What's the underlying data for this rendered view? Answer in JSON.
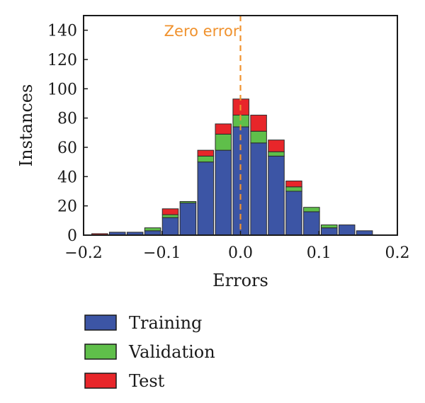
{
  "chart_data": {
    "type": "bar",
    "stacked": true,
    "xlabel": "Errors",
    "ylabel": "Instances",
    "xlim": [
      -0.2,
      0.2
    ],
    "ylim": [
      0,
      150
    ],
    "xticks": [
      -0.2,
      -0.1,
      0.0,
      0.1,
      0.2
    ],
    "xtick_labels": [
      "−0.2",
      "−0.1",
      "0.0",
      "0.1",
      "0.2"
    ],
    "yticks": [
      0,
      20,
      40,
      60,
      80,
      100,
      120,
      140
    ],
    "ytick_labels": [
      "0",
      "20",
      "40",
      "60",
      "80",
      "100",
      "120",
      "140"
    ],
    "bin_width": 0.0225,
    "x": [
      -0.1794,
      -0.1569,
      -0.1344,
      -0.1119,
      -0.0894,
      -0.0669,
      -0.0444,
      -0.0219,
      0.0006,
      0.0231,
      0.0456,
      0.0681,
      0.0906,
      0.1131,
      0.1356,
      0.1581
    ],
    "series": [
      {
        "name": "Training",
        "color": "#3c55a5",
        "values": [
          0,
          2,
          2,
          3,
          12,
          22,
          50,
          58,
          74,
          63,
          54,
          30,
          16,
          5,
          7,
          3
        ]
      },
      {
        "name": "Validation",
        "color": "#5fbf4a",
        "values": [
          0,
          0,
          0,
          2,
          2,
          1,
          4,
          11,
          8,
          8,
          3,
          3,
          3,
          2,
          0,
          0
        ]
      },
      {
        "name": "Test",
        "color": "#e8262a",
        "values": [
          1,
          0,
          0,
          0,
          4,
          0,
          4,
          7,
          11,
          11,
          8,
          4,
          0,
          0,
          0,
          0
        ]
      }
    ],
    "annotation": {
      "label": "Zero error",
      "x": 0.0,
      "color": "#f0922e"
    },
    "grid": false,
    "legend_position": "bottom-left"
  }
}
